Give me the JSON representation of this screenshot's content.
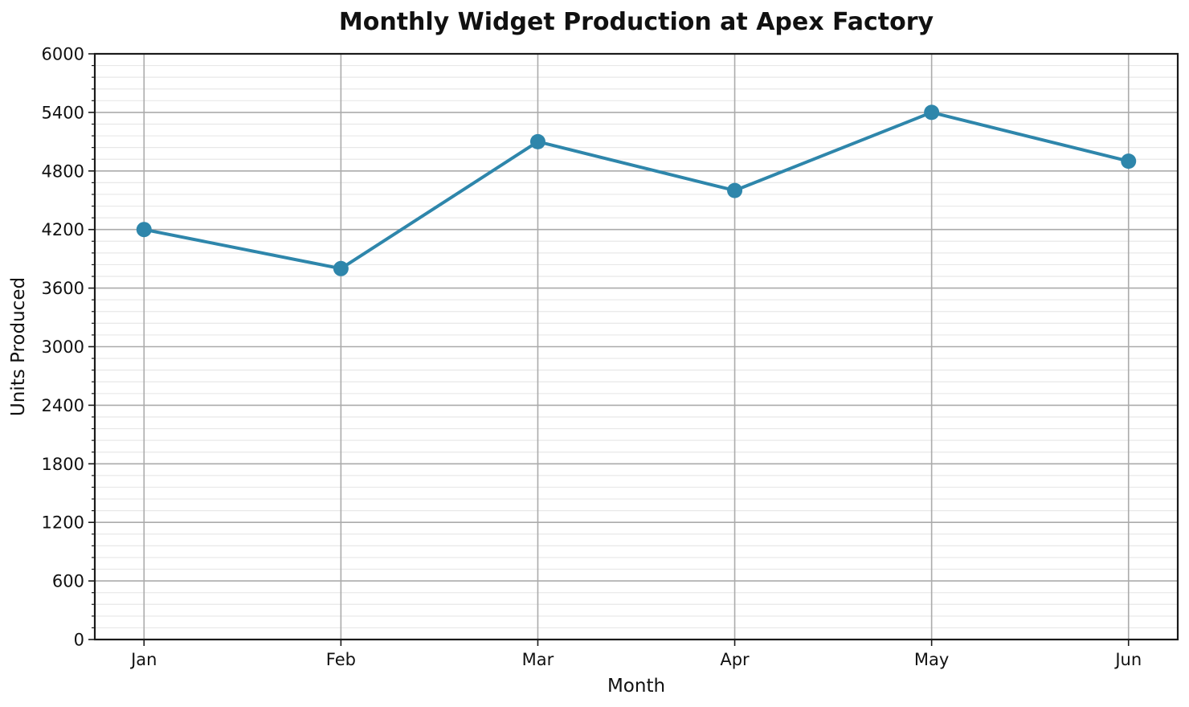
{
  "page": {
    "background": "#ffffff"
  },
  "chart_data": {
    "type": "line",
    "title": "Monthly Widget Production at Apex Factory",
    "xlabel": "Month",
    "ylabel": "Units Produced",
    "categories": [
      "Jan",
      "Feb",
      "Mar",
      "Apr",
      "May",
      "Jun"
    ],
    "values": [
      4200,
      3800,
      5100,
      4600,
      5400,
      4900
    ],
    "ylim": [
      0,
      6000
    ],
    "yticks": [
      0,
      600,
      1200,
      1800,
      2400,
      3000,
      3600,
      4200,
      4800,
      5400,
      6000
    ],
    "y_minor_step": 120,
    "legend": false,
    "grid": {
      "horizontal_major": true,
      "horizontal_minor": true,
      "vertical_major": true,
      "vertical_minor": false
    },
    "colors": {
      "line": "#2E86AB",
      "marker": "#2E86AB",
      "grid_major": "#ABABAB",
      "grid_minor": "#E8E8E8",
      "spine": "#1A1A1A",
      "tick": "#1A1A1A",
      "text": "#111111"
    }
  }
}
